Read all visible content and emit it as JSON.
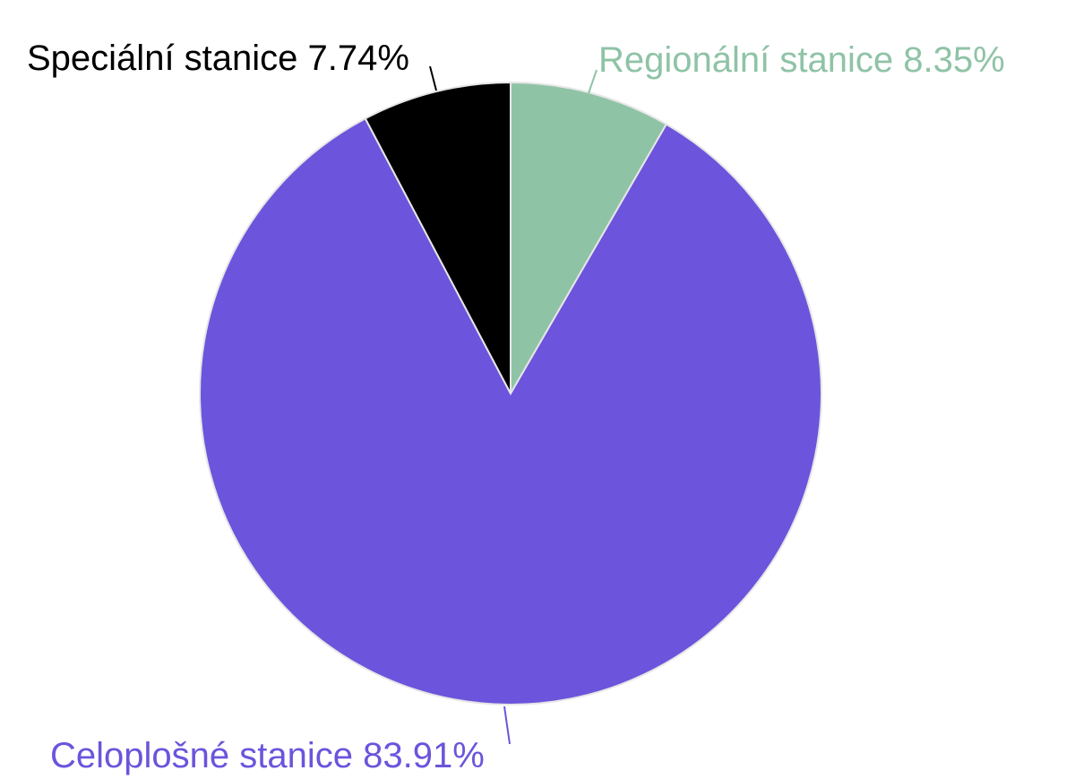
{
  "chart_data": {
    "type": "pie",
    "start_angle_deg": 0,
    "direction": "clockwise",
    "slices": [
      {
        "label": "Regionální stanice 8.35%",
        "value": 8.35,
        "color": "#8fc3a6"
      },
      {
        "label": "Celoplošné stanice 83.91%",
        "value": 83.91,
        "color": "#6c54dc"
      },
      {
        "label": "Speciální stanice 7.74%",
        "value": 7.74,
        "color": "#000000"
      }
    ],
    "legend": "none"
  }
}
